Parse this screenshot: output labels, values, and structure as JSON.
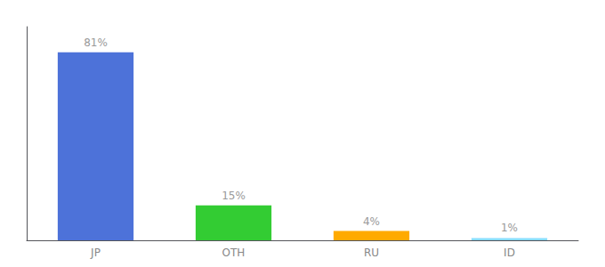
{
  "chart_data": {
    "type": "bar",
    "categories": [
      "JP",
      "OTH",
      "RU",
      "ID"
    ],
    "values": [
      81,
      15,
      4,
      1
    ],
    "value_labels": [
      "81%",
      "15%",
      "4%",
      "1%"
    ],
    "colors": [
      "#4d72d9",
      "#33cc33",
      "#ffaa00",
      "#88ddff"
    ],
    "ylim": [
      0,
      92
    ],
    "grid": false,
    "data_labels": true,
    "tick_labels": "x"
  }
}
